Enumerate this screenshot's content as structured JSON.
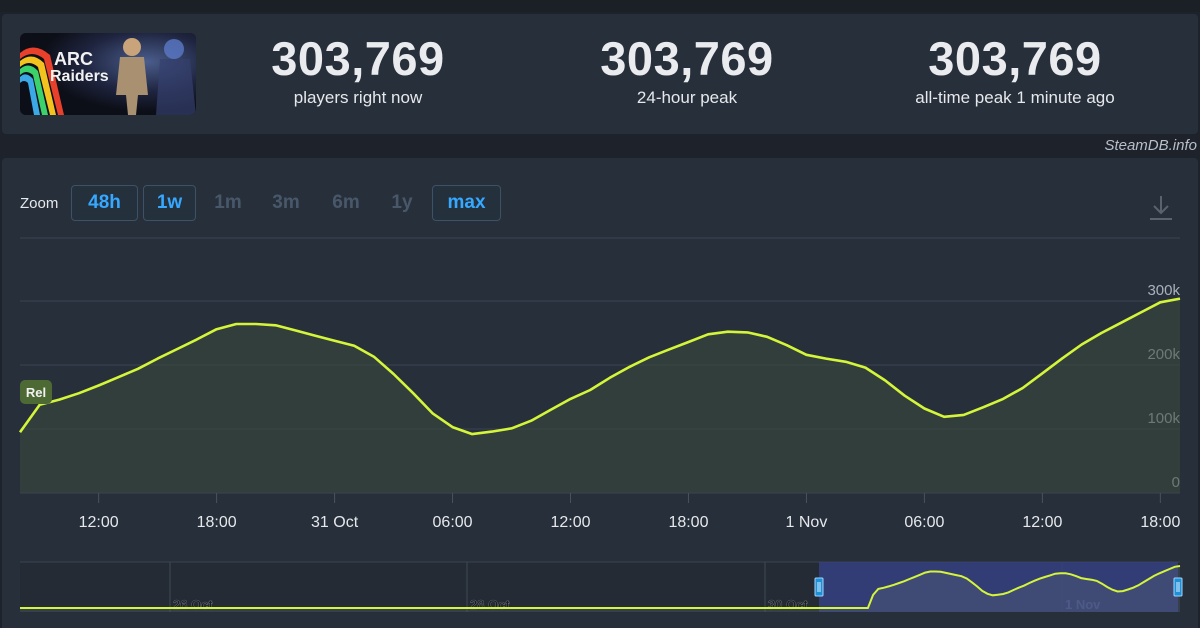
{
  "stats": [
    {
      "value": "303,769",
      "label": "players right now"
    },
    {
      "value": "303,769",
      "label": "24-hour peak"
    },
    {
      "value": "303,769",
      "label": "all-time peak 1 minute ago"
    }
  ],
  "game": {
    "logo_text_1": "ARC",
    "logo_text_2": "Raiders"
  },
  "watermark": "SteamDB.info",
  "zoom": {
    "label": "Zoom",
    "options": [
      {
        "label": "48h",
        "active": true
      },
      {
        "label": "1w",
        "active": true
      },
      {
        "label": "1m",
        "active": false
      },
      {
        "label": "3m",
        "active": false
      },
      {
        "label": "6m",
        "active": false
      },
      {
        "label": "1y",
        "active": false
      },
      {
        "label": "max",
        "active": true
      }
    ]
  },
  "icons": {
    "download": "download-icon"
  },
  "colors": {
    "line": "#d4f53a",
    "accent": "#35a8ff",
    "release_flag": "#4d6a35",
    "navigator_window": "#353f80"
  },
  "chart_data": {
    "type": "line",
    "series": [
      {
        "x": [
          "2025-10-30T08:00",
          "2025-10-30T09:00",
          "2025-10-30T10:00",
          "2025-10-30T11:00",
          "2025-10-30T12:00",
          "2025-10-30T13:00",
          "2025-10-30T14:00",
          "2025-10-30T15:00",
          "2025-10-30T16:00",
          "2025-10-30T17:00",
          "2025-10-30T18:00",
          "2025-10-30T19:00",
          "2025-10-30T20:00",
          "2025-10-30T21:00",
          "2025-10-30T22:00",
          "2025-10-30T23:00",
          "2025-10-31T00:00",
          "2025-10-31T01:00",
          "2025-10-31T02:00",
          "2025-10-31T03:00",
          "2025-10-31T04:00",
          "2025-10-31T05:00",
          "2025-10-31T06:00",
          "2025-10-31T07:00",
          "2025-10-31T08:00",
          "2025-10-31T09:00",
          "2025-10-31T10:00",
          "2025-10-31T11:00",
          "2025-10-31T12:00",
          "2025-10-31T13:00",
          "2025-10-31T14:00",
          "2025-10-31T15:00",
          "2025-10-31T16:00",
          "2025-10-31T17:00",
          "2025-10-31T18:00",
          "2025-10-31T19:00",
          "2025-10-31T20:00",
          "2025-10-31T21:00",
          "2025-10-31T22:00",
          "2025-10-31T23:00",
          "2025-11-01T00:00",
          "2025-11-01T01:00",
          "2025-11-01T02:00",
          "2025-11-01T03:00",
          "2025-11-01T04:00",
          "2025-11-01T05:00",
          "2025-11-01T06:00",
          "2025-11-01T07:00",
          "2025-11-01T08:00",
          "2025-11-01T09:00",
          "2025-11-01T10:00",
          "2025-11-01T11:00",
          "2025-11-01T12:00",
          "2025-11-01T13:00",
          "2025-11-01T14:00",
          "2025-11-01T15:00",
          "2025-11-01T16:00",
          "2025-11-01T17:00",
          "2025-11-01T18:00",
          "2025-11-01T19:00"
        ],
        "values": [
          95000,
          138000,
          146000,
          156000,
          168000,
          181000,
          194000,
          210000,
          225000,
          240000,
          256000,
          264000,
          264000,
          262000,
          254000,
          246000,
          238000,
          230000,
          213000,
          186000,
          156000,
          124000,
          103000,
          92000,
          96000,
          101000,
          113000,
          130000,
          147000,
          161000,
          180000,
          197000,
          212000,
          224000,
          236000,
          248000,
          252000,
          251000,
          244000,
          231000,
          216000,
          210000,
          205000,
          196000,
          176000,
          152000,
          132000,
          119000,
          122000,
          134000,
          147000,
          164000,
          187000,
          210000,
          232000,
          250000,
          266000,
          282000,
          298000,
          303769
        ]
      }
    ],
    "x_ticks": [
      "12:00",
      "18:00",
      "31 Oct",
      "06:00",
      "12:00",
      "18:00",
      "1 Nov",
      "06:00",
      "12:00",
      "18:00"
    ],
    "y_ticks": [
      "300k",
      "200k",
      "100k",
      "0"
    ],
    "ylim": [
      0,
      300000
    ],
    "annotations": [
      {
        "label": "Rel",
        "x": "2025-10-30T08:30"
      }
    ],
    "navigator": {
      "labels": [
        "26 Oct",
        "28 Oct",
        "30 Oct",
        "1 Nov"
      ],
      "values": [
        0,
        0,
        0,
        0,
        0,
        0,
        0,
        0,
        0,
        0,
        0,
        0,
        0,
        0,
        0,
        0,
        0,
        0,
        0,
        0,
        0,
        0,
        0,
        0,
        0,
        0,
        0,
        0,
        0,
        0,
        0,
        0,
        0,
        0,
        0,
        0,
        0,
        0,
        0,
        0,
        0,
        0,
        0,
        0,
        0,
        0,
        0,
        0,
        0,
        0,
        0,
        0,
        0,
        0,
        0,
        0,
        0,
        0,
        0,
        0,
        0,
        0,
        0,
        0,
        0,
        0,
        0,
        0,
        0,
        0,
        0,
        0,
        0,
        0,
        0,
        0,
        0,
        0,
        0,
        0,
        0,
        0,
        0,
        0,
        0,
        0,
        0,
        0,
        0,
        0,
        0,
        0,
        0,
        0,
        0,
        0,
        0,
        0,
        0,
        0,
        0,
        0,
        0,
        0,
        0,
        0,
        0,
        0,
        0,
        0,
        0,
        0,
        0,
        0,
        0,
        0,
        0,
        0,
        0,
        0,
        0,
        0,
        0,
        0,
        0,
        0,
        0,
        0,
        0,
        0,
        0,
        0,
        0,
        0,
        0,
        0,
        0,
        0,
        0,
        0,
        0,
        0,
        0,
        0,
        0,
        0,
        0,
        0,
        0,
        0,
        0,
        0,
        0,
        0,
        0,
        0,
        0,
        0,
        0,
        0,
        0,
        0,
        0,
        0,
        95000,
        138000,
        146000,
        156000,
        168000,
        181000,
        194000,
        210000,
        225000,
        240000,
        256000,
        264000,
        264000,
        262000,
        254000,
        246000,
        238000,
        230000,
        213000,
        186000,
        156000,
        124000,
        103000,
        92000,
        96000,
        101000,
        113000,
        130000,
        147000,
        161000,
        180000,
        197000,
        212000,
        224000,
        236000,
        248000,
        252000,
        251000,
        244000,
        231000,
        216000,
        210000,
        205000,
        196000,
        176000,
        152000,
        132000,
        119000,
        122000,
        134000,
        147000,
        164000,
        187000,
        210000,
        232000,
        250000,
        266000,
        282000,
        298000,
        303769
      ]
    },
    "grid": true,
    "legend": "none"
  }
}
